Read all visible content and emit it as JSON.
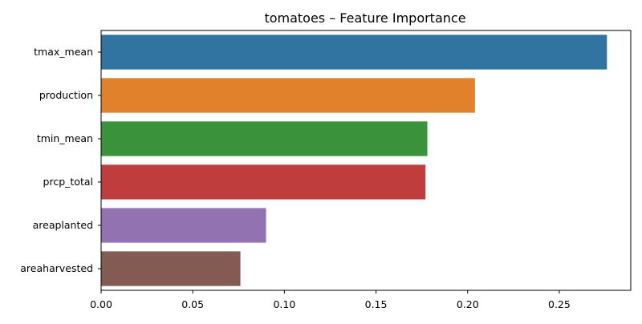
{
  "chart_data": {
    "type": "bar",
    "orientation": "horizontal",
    "title": "tomatoes – Feature Importance",
    "xlabel": "",
    "ylabel": "",
    "categories": [
      "tmax_mean",
      "production",
      "tmin_mean",
      "prcp_total",
      "areaplanted",
      "areaharvested"
    ],
    "values": [
      0.276,
      0.204,
      0.178,
      0.177,
      0.09,
      0.076
    ],
    "colors": [
      "#3274a1",
      "#e1812c",
      "#3a923a",
      "#c03d3e",
      "#9372b2",
      "#845b53"
    ],
    "xlim": [
      0,
      0.289
    ],
    "xticks": [
      0.0,
      0.05,
      0.1,
      0.15,
      0.2,
      0.25
    ],
    "xtick_labels": [
      "0.00",
      "0.05",
      "0.10",
      "0.15",
      "0.20",
      "0.25"
    ],
    "grid": false,
    "legend": "none"
  }
}
